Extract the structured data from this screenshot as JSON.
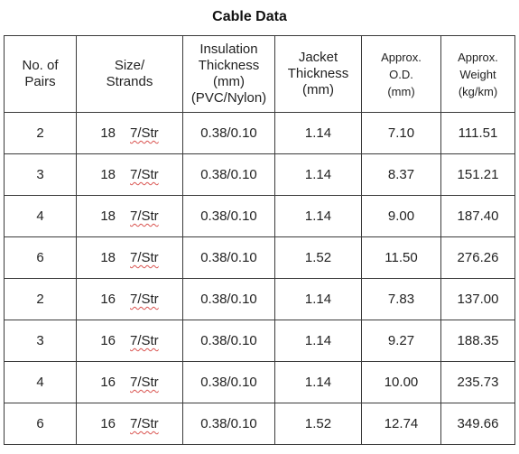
{
  "title": "Cable Data",
  "headers": {
    "pairs": [
      "No. of",
      "Pairs"
    ],
    "size": [
      "Size/",
      "Strands"
    ],
    "insulation": [
      "Insulation",
      "Thickness",
      "(mm)",
      "(PVC/Nylon)"
    ],
    "jacket": [
      "Jacket",
      "Thickness",
      "(mm)"
    ],
    "od": [
      "Approx.",
      "O.D.",
      "(mm)"
    ],
    "weight": [
      "Approx.",
      "Weight",
      "(kg/km)"
    ]
  },
  "rows": [
    {
      "pairs": "2",
      "gauge": "18",
      "strands": "7/Str",
      "insulation": "0.38/0.10",
      "jacket": "1.14",
      "od": "7.10",
      "weight": "111.51"
    },
    {
      "pairs": "3",
      "gauge": "18",
      "strands": "7/Str",
      "insulation": "0.38/0.10",
      "jacket": "1.14",
      "od": "8.37",
      "weight": "151.21"
    },
    {
      "pairs": "4",
      "gauge": "18",
      "strands": "7/Str",
      "insulation": "0.38/0.10",
      "jacket": "1.14",
      "od": "9.00",
      "weight": "187.40"
    },
    {
      "pairs": "6",
      "gauge": "18",
      "strands": "7/Str",
      "insulation": "0.38/0.10",
      "jacket": "1.52",
      "od": "11.50",
      "weight": "276.26"
    },
    {
      "pairs": "2",
      "gauge": "16",
      "strands": "7/Str",
      "insulation": "0.38/0.10",
      "jacket": "1.14",
      "od": "7.83",
      "weight": "137.00"
    },
    {
      "pairs": "3",
      "gauge": "16",
      "strands": "7/Str",
      "insulation": "0.38/0.10",
      "jacket": "1.14",
      "od": "9.27",
      "weight": "188.35"
    },
    {
      "pairs": "4",
      "gauge": "16",
      "strands": "7/Str",
      "insulation": "0.38/0.10",
      "jacket": "1.14",
      "od": "10.00",
      "weight": "235.73"
    },
    {
      "pairs": "6",
      "gauge": "16",
      "strands": "7/Str",
      "insulation": "0.38/0.10",
      "jacket": "1.52",
      "od": "12.74",
      "weight": "349.66"
    }
  ],
  "colors": {
    "border": "#3a3a3a",
    "text": "#222222",
    "spellcheck_underline": "#d9534f"
  }
}
